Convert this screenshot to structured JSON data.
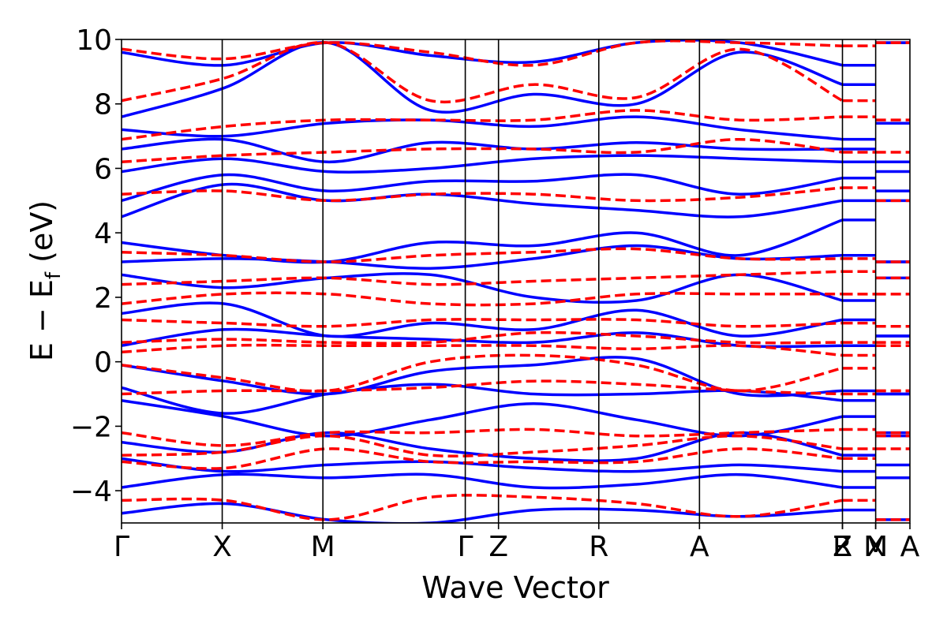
{
  "chart_data": {
    "type": "line",
    "title": "",
    "xlabel": "Wave Vector",
    "ylabel_main": "E − E",
    "ylabel_sub": "f",
    "ylabel_unit": " (eV)",
    "ylim": [
      -5,
      10
    ],
    "yticks": [
      -4,
      -2,
      0,
      2,
      4,
      6,
      8,
      10
    ],
    "ytick_labels": [
      "−4",
      "−2",
      "0",
      "2",
      "4",
      "6",
      "8",
      "10"
    ],
    "kpath": [
      {
        "label": "Γ",
        "x": 0.0
      },
      {
        "label": "X",
        "x": 0.5
      },
      {
        "label": "M",
        "x": 1.0
      },
      {
        "label": "Γ",
        "x": 1.707
      },
      {
        "label": "Z",
        "x": 1.872
      },
      {
        "label": "R",
        "x": 2.37
      },
      {
        "label": "A",
        "x": 2.87
      },
      {
        "label": "Z",
        "x": 3.58
      },
      {
        "label": "R",
        "x": 3.58
      },
      {
        "label": "X",
        "x": 3.745
      },
      {
        "label": "M",
        "x": 3.745
      },
      {
        "label": "A",
        "x": 3.915
      }
    ],
    "xlim": [
      0,
      3.915
    ],
    "segments": [
      [
        0.0,
        3.58
      ],
      [
        3.58,
        3.745
      ],
      [
        3.745,
        3.915
      ]
    ],
    "series": [
      {
        "style": "solid",
        "color": "#0000ff",
        "bands": [
          [
            -4.7,
            -4.4,
            -4.9,
            -5.0,
            -4.6,
            -4.6,
            -4.8,
            -4.6
          ],
          [
            -3.9,
            -3.5,
            -3.6,
            -3.5,
            -3.9,
            -3.8,
            -3.5,
            -3.9
          ],
          [
            -3.0,
            -3.4,
            -3.2,
            -3.1,
            -3.3,
            -3.4,
            -3.2,
            -3.4
          ],
          [
            -2.5,
            -2.8,
            -2.2,
            -2.7,
            -3.0,
            -3.0,
            -2.2,
            -2.9
          ],
          [
            -1.2,
            -1.7,
            -2.3,
            -1.8,
            -1.3,
            -1.8,
            -2.3,
            -1.7
          ],
          [
            -0.8,
            -1.6,
            -1.0,
            -0.7,
            -1.0,
            -1.0,
            -0.9,
            -1.2
          ],
          [
            -0.1,
            -0.6,
            -1.0,
            -0.3,
            -0.1,
            0.1,
            -1.0,
            -0.9
          ],
          [
            0.5,
            1.0,
            0.8,
            0.7,
            0.6,
            0.9,
            0.5,
            0.5
          ],
          [
            1.5,
            1.8,
            0.8,
            1.2,
            1.0,
            1.6,
            0.8,
            1.3
          ],
          [
            2.7,
            2.3,
            2.6,
            2.7,
            2.0,
            1.9,
            2.7,
            1.9
          ],
          [
            3.1,
            3.2,
            3.1,
            2.9,
            3.2,
            3.6,
            3.2,
            3.3
          ],
          [
            3.7,
            3.3,
            3.1,
            3.7,
            3.6,
            4.0,
            3.3,
            4.4
          ],
          [
            4.5,
            5.5,
            5.0,
            5.2,
            4.9,
            4.7,
            4.5,
            5.0
          ],
          [
            5.0,
            5.8,
            5.3,
            5.6,
            5.6,
            5.8,
            5.2,
            5.7
          ],
          [
            5.9,
            6.3,
            5.9,
            6.0,
            6.3,
            6.4,
            6.3,
            6.2
          ],
          [
            6.6,
            6.9,
            6.2,
            6.8,
            6.6,
            6.8,
            6.6,
            6.6
          ],
          [
            7.2,
            7.0,
            7.4,
            7.5,
            7.3,
            7.6,
            7.2,
            6.9
          ],
          [
            7.6,
            8.5,
            9.9,
            7.8,
            8.3,
            8.0,
            9.6,
            8.6
          ],
          [
            9.6,
            9.2,
            9.9,
            9.5,
            9.3,
            9.9,
            9.9,
            9.2
          ]
        ]
      },
      {
        "style": "dashed",
        "color": "#ff0000",
        "bands": [
          [
            -4.3,
            -4.3,
            -4.9,
            -4.2,
            -4.2,
            -4.4,
            -4.8,
            -4.3
          ],
          [
            -3.1,
            -3.3,
            -2.7,
            -3.1,
            -3.1,
            -3.1,
            -2.7,
            -3.0
          ],
          [
            -2.9,
            -2.8,
            -2.3,
            -2.9,
            -2.8,
            -2.6,
            -2.3,
            -2.7
          ],
          [
            -2.2,
            -2.6,
            -2.2,
            -2.2,
            -2.1,
            -2.3,
            -2.2,
            -2.1
          ],
          [
            -1.0,
            -0.9,
            -0.9,
            -0.8,
            -0.6,
            -0.7,
            -0.9,
            -1.0
          ],
          [
            -0.1,
            -0.5,
            -0.9,
            0.0,
            0.2,
            -0.1,
            -0.9,
            -0.2
          ],
          [
            0.3,
            0.5,
            0.5,
            0.5,
            0.5,
            0.4,
            0.5,
            0.2
          ],
          [
            0.6,
            0.7,
            0.6,
            0.6,
            0.9,
            0.8,
            0.6,
            0.6
          ],
          [
            1.3,
            1.2,
            1.1,
            1.3,
            1.3,
            1.3,
            1.1,
            1.2
          ],
          [
            1.8,
            2.1,
            2.1,
            1.8,
            1.8,
            2.1,
            2.1,
            2.1
          ],
          [
            2.4,
            2.5,
            2.6,
            2.4,
            2.5,
            2.6,
            2.7,
            2.8
          ],
          [
            3.4,
            3.3,
            3.1,
            3.3,
            3.4,
            3.5,
            3.2,
            3.2
          ],
          [
            5.2,
            5.3,
            5.0,
            5.2,
            5.2,
            5.0,
            5.1,
            5.4
          ],
          [
            6.2,
            6.4,
            6.5,
            6.6,
            6.6,
            6.5,
            6.9,
            6.5
          ],
          [
            6.9,
            7.3,
            7.5,
            7.5,
            7.5,
            7.8,
            7.5,
            7.6
          ],
          [
            8.1,
            8.8,
            9.9,
            8.1,
            8.6,
            8.2,
            9.7,
            8.1
          ],
          [
            9.7,
            9.4,
            9.9,
            9.6,
            9.2,
            9.9,
            9.9,
            9.8
          ]
        ]
      }
    ],
    "grid": false,
    "legend": "none"
  }
}
